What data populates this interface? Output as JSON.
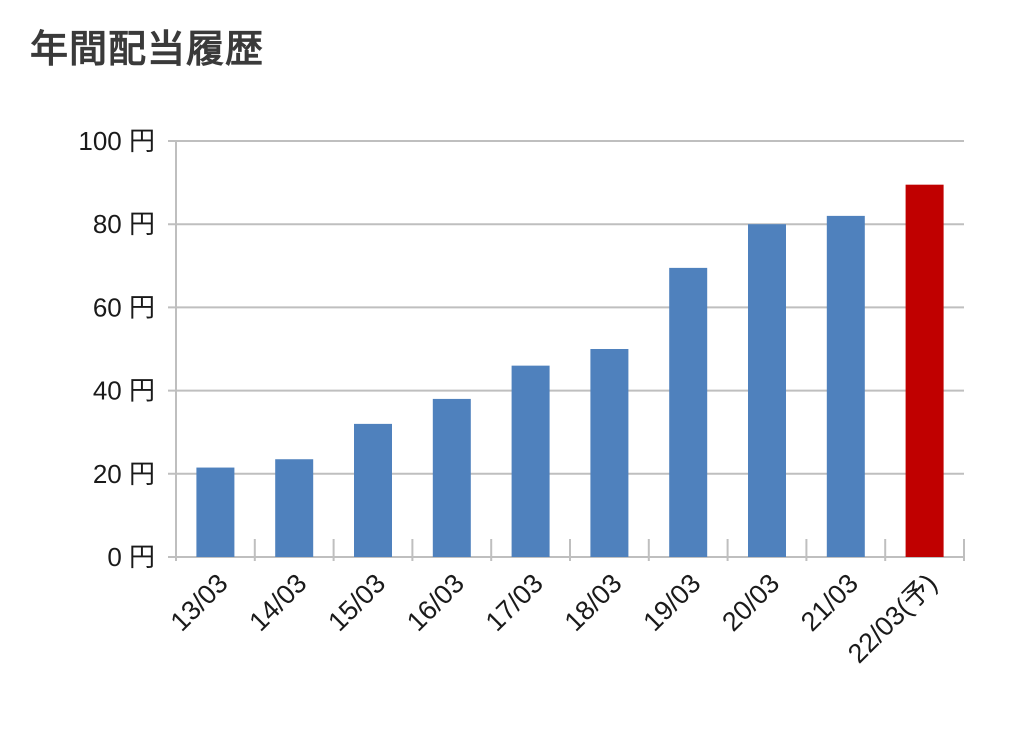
{
  "chart_data": {
    "type": "bar",
    "title": "年間配当履歴",
    "xlabel": "",
    "ylabel": "",
    "ylim": [
      0,
      100
    ],
    "y_ticks": [
      {
        "value": 0,
        "label": "0 円"
      },
      {
        "value": 20,
        "label": "20 円"
      },
      {
        "value": 40,
        "label": "40 円"
      },
      {
        "value": 60,
        "label": "60 円"
      },
      {
        "value": 80,
        "label": "80 円"
      },
      {
        "value": 100,
        "label": "100 円"
      }
    ],
    "categories": [
      "13/03",
      "14/03",
      "15/03",
      "16/03",
      "17/03",
      "18/03",
      "19/03",
      "20/03",
      "21/03",
      "22/03(予)"
    ],
    "values": [
      21.5,
      23.5,
      32,
      38,
      46,
      50,
      69.5,
      80,
      82,
      89.5
    ],
    "grid": true,
    "colors": {
      "actual": "#4f81bd",
      "forecast": "#c00000",
      "grid": "#bfbfbf",
      "axis": "#bfbfbf"
    },
    "highlight_index": 9
  }
}
